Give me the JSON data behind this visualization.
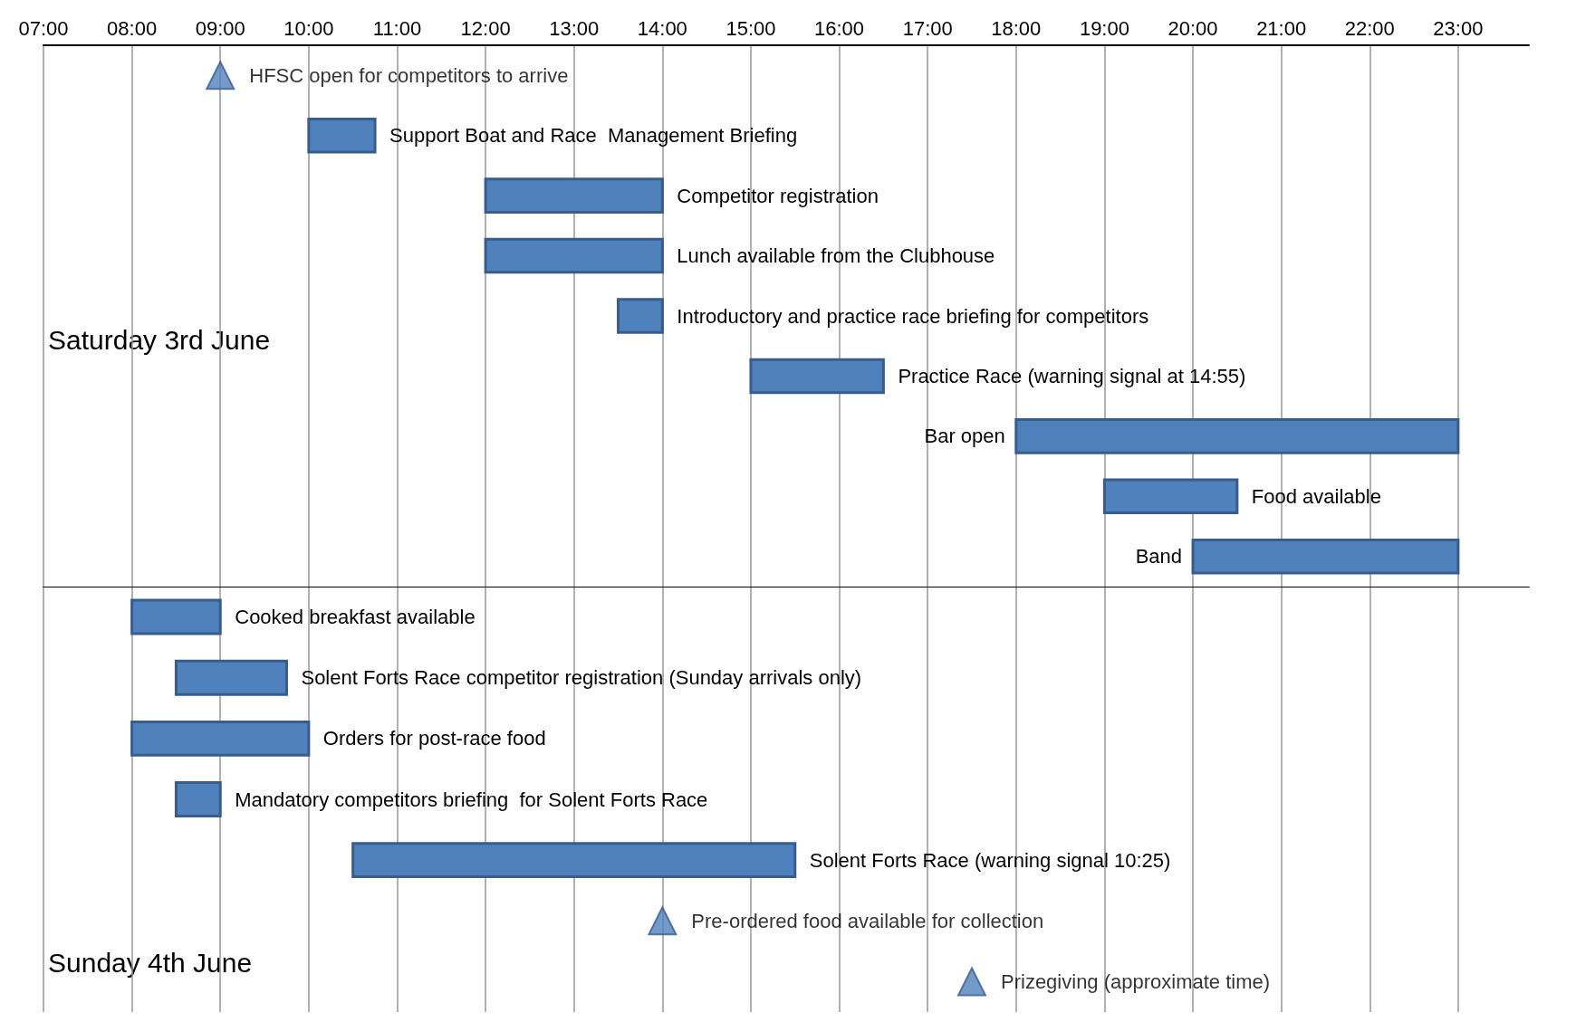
{
  "chart_data": [
    {
      "type": "bar",
      "orientation": "horizontal",
      "annotations": [
        "Saturday 3rd June"
      ],
      "categories": [
        "HFSC open for competitors to arrive",
        "Support Boat and Race  Management Briefing",
        "Competitor registration",
        "Lunch available from the Clubhouse",
        "Introductory and practice race briefing for competitors",
        "Practice Race (warning signal at 14:55)",
        "Bar open",
        "Food available",
        "Band"
      ],
      "series": [
        {
          "color": "#4f81bd",
          "base": [
            null,
            10,
            12,
            12,
            13.5,
            15,
            18,
            19,
            20
          ],
          "values": [
            null,
            0.75,
            2,
            2,
            0.5,
            1.5,
            5,
            1.5,
            3
          ]
        },
        {
          "type": "scatter",
          "marker": "triangle",
          "color": "#4f81bd",
          "values": [
            9,
            null,
            null,
            null,
            null,
            null,
            null,
            null,
            null
          ]
        }
      ],
      "xlim": [
        7,
        23.8
      ],
      "xticks": [
        {
          "value": 7,
          "label": "07:00"
        },
        {
          "value": 8,
          "label": "08:00"
        },
        {
          "value": 9,
          "label": "09:00"
        },
        {
          "value": 10,
          "label": "10:00"
        },
        {
          "value": 11,
          "label": "11:00"
        },
        {
          "value": 12,
          "label": "12:00"
        },
        {
          "value": 13,
          "label": "13:00"
        },
        {
          "value": 14,
          "label": "14:00"
        },
        {
          "value": 15,
          "label": "15:00"
        },
        {
          "value": 16,
          "label": "16:00"
        },
        {
          "value": 17,
          "label": "17:00"
        },
        {
          "value": 18,
          "label": "18:00"
        },
        {
          "value": 19,
          "label": "19:00"
        },
        {
          "value": 20,
          "label": "20:00"
        },
        {
          "value": 21,
          "label": "21:00"
        },
        {
          "value": 22,
          "label": "22:00"
        },
        {
          "value": 23,
          "label": "23:00"
        }
      ],
      "grid": "x"
    },
    {
      "type": "bar",
      "orientation": "horizontal",
      "annotations": [
        "Sunday 4th June"
      ],
      "categories": [
        "Cooked breakfast available",
        "Solent Forts Race competitor registration (Sunday arrivals only)",
        "Orders for post-race food",
        "Mandatory competitors briefing  for Solent Forts Race",
        "Solent Forts Race (warning signal 10:25)",
        "Pre-ordered food available for collection",
        "Prizegiving (approximate time)"
      ],
      "series": [
        {
          "color": "#4f81bd",
          "base": [
            8,
            8.5,
            8,
            8.5,
            10.5,
            null,
            null
          ],
          "values": [
            1,
            1.25,
            2,
            0.5,
            5,
            null,
            null
          ]
        },
        {
          "type": "scatter",
          "marker": "triangle",
          "color": "#4f81bd",
          "values": [
            null,
            null,
            null,
            null,
            null,
            14,
            17.5
          ]
        }
      ],
      "xlim": [
        7,
        23.8
      ],
      "xticks": [
        {
          "value": 7,
          "label": null
        },
        {
          "value": 8,
          "label": null
        },
        {
          "value": 9,
          "label": null
        },
        {
          "value": 10,
          "label": null
        },
        {
          "value": 11,
          "label": null
        },
        {
          "value": 12,
          "label": null
        },
        {
          "value": 13,
          "label": null
        },
        {
          "value": 14,
          "label": null
        },
        {
          "value": 15,
          "label": null
        },
        {
          "value": 16,
          "label": null
        },
        {
          "value": 17,
          "label": null
        },
        {
          "value": 18,
          "label": null
        },
        {
          "value": 19,
          "label": null
        },
        {
          "value": 20,
          "label": null
        },
        {
          "value": 21,
          "label": null
        },
        {
          "value": 22,
          "label": null
        },
        {
          "value": 23,
          "label": null
        }
      ],
      "grid": "x",
      "tick_labels": false
    }
  ]
}
